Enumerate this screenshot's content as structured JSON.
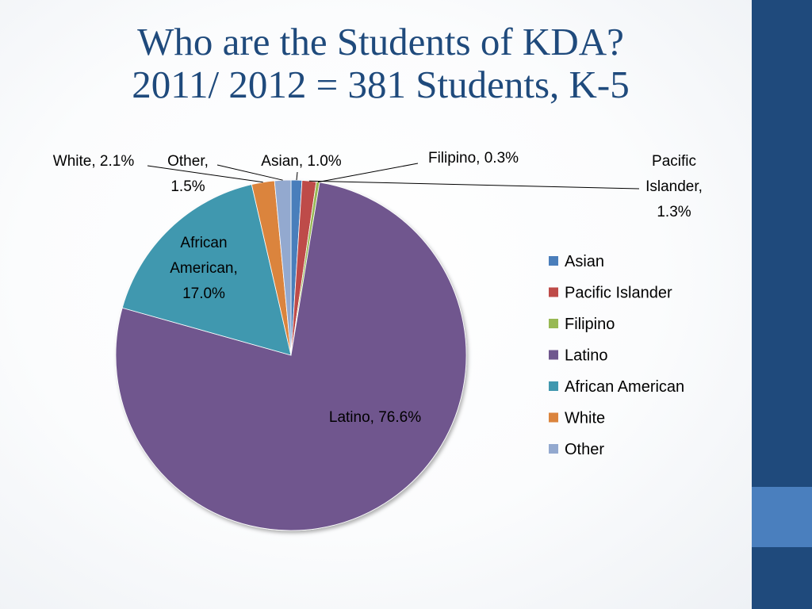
{
  "slide": {
    "title_line1": "Who are the Students of KDA?",
    "title_line2": "2011/ 2012 = 381 Students, K-5"
  },
  "chart_data": {
    "type": "pie",
    "title": "",
    "legend_position": "right",
    "start_angle_deg": 0,
    "direction": "clockwise",
    "slices": [
      {
        "name": "Asian",
        "value": 1.0,
        "color": "#4a7ebb",
        "label_lines": [
          "Asian, 1.0%"
        ]
      },
      {
        "name": "Pacific Islander",
        "value": 1.3,
        "color": "#be4b48",
        "label_lines": [
          "Pacific",
          "Islander,",
          "1.3%"
        ]
      },
      {
        "name": "Filipino",
        "value": 0.3,
        "color": "#98b954",
        "label_lines": [
          "Filipino, 0.3%"
        ]
      },
      {
        "name": "Latino",
        "value": 76.6,
        "color": "#6f578e",
        "label_lines": [
          "Latino, 76.6%"
        ]
      },
      {
        "name": "African American",
        "value": 17.0,
        "color": "#4198af",
        "label_lines": [
          "African",
          "American,",
          "17.0%"
        ]
      },
      {
        "name": "White",
        "value": 2.1,
        "color": "#db843d",
        "label_lines": [
          "White, 2.1%"
        ]
      },
      {
        "name": "Other",
        "value": 1.5,
        "color": "#93a9cf",
        "label_lines": [
          "Other,",
          "1.5%"
        ]
      }
    ]
  }
}
